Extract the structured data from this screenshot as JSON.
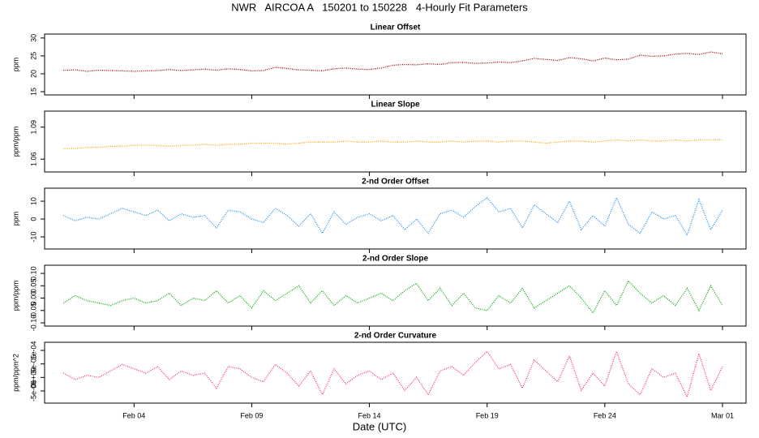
{
  "title": "NWR   AIRCOA A   150201 to 150228   4-Hourly Fit Parameters",
  "x_label": "Date (UTC)",
  "chart_data": [
    {
      "type": "line",
      "title": "Linear Offset",
      "y_label": "ppm",
      "color": "#a00000",
      "xlim": [
        0.2,
        30.0
      ],
      "ylim": [
        14.1,
        31.1
      ],
      "yticks": [
        15,
        20,
        25,
        30
      ],
      "x": [
        1,
        1.5,
        2,
        2.5,
        3,
        3.5,
        4,
        4.5,
        5,
        5.5,
        6,
        6.5,
        7,
        7.5,
        8,
        8.5,
        9,
        9.5,
        10,
        10.5,
        11,
        11.5,
        12,
        12.5,
        13,
        13.5,
        14,
        14.5,
        15,
        15.5,
        16,
        16.5,
        17,
        17.5,
        18,
        18.5,
        19,
        19.5,
        20,
        20.5,
        21,
        21.5,
        22,
        22.5,
        23,
        23.5,
        24,
        24.5,
        25,
        25.5,
        26,
        26.5,
        27,
        27.5,
        28,
        28.5,
        29
      ],
      "values": [
        21.0,
        21.1,
        20.7,
        21.0,
        20.9,
        20.8,
        20.7,
        20.8,
        20.9,
        21.2,
        20.9,
        21.1,
        21.3,
        21.0,
        21.4,
        21.2,
        20.8,
        20.9,
        21.8,
        21.5,
        21.1,
        21.0,
        20.8,
        21.4,
        21.6,
        21.3,
        21.2,
        21.6,
        22.4,
        22.6,
        22.5,
        22.8,
        22.6,
        23.1,
        23.2,
        22.9,
        23.0,
        23.3,
        23.1,
        23.6,
        24.3,
        24.0,
        23.7,
        24.5,
        24.2,
        23.6,
        24.4,
        23.9,
        24.1,
        25.2,
        24.9,
        25.0,
        25.5,
        25.7,
        25.4,
        26.1,
        25.6
      ]
    },
    {
      "type": "line",
      "title": "Linear Slope",
      "y_label": "ppm/ppm",
      "color": "#ffa500",
      "xlim": [
        0.2,
        30.0
      ],
      "ylim": [
        1.048,
        1.105
      ],
      "yticks": [
        1.06,
        1.09
      ],
      "x": [
        1,
        1.5,
        2,
        2.5,
        3,
        3.5,
        4,
        4.5,
        5,
        5.5,
        6,
        6.5,
        7,
        7.5,
        8,
        8.5,
        9,
        9.5,
        10,
        10.5,
        11,
        11.5,
        12,
        12.5,
        13,
        13.5,
        14,
        14.5,
        15,
        15.5,
        16,
        16.5,
        17,
        17.5,
        18,
        18.5,
        19,
        19.5,
        20,
        20.5,
        21,
        21.5,
        22,
        22.5,
        23,
        23.5,
        24,
        24.5,
        25,
        25.5,
        26,
        26.5,
        27,
        27.5,
        28,
        28.5,
        29
      ],
      "values": [
        1.07,
        1.07,
        1.071,
        1.071,
        1.072,
        1.072,
        1.073,
        1.073,
        1.073,
        1.072,
        1.073,
        1.073,
        1.074,
        1.073,
        1.074,
        1.074,
        1.075,
        1.075,
        1.075,
        1.074,
        1.075,
        1.076,
        1.076,
        1.076,
        1.077,
        1.076,
        1.076,
        1.077,
        1.076,
        1.076,
        1.077,
        1.076,
        1.076,
        1.077,
        1.076,
        1.077,
        1.077,
        1.076,
        1.077,
        1.077,
        1.076,
        1.075,
        1.076,
        1.077,
        1.077,
        1.076,
        1.077,
        1.078,
        1.077,
        1.078,
        1.077,
        1.077,
        1.078,
        1.077,
        1.078,
        1.078,
        1.078
      ]
    },
    {
      "type": "line",
      "title": "2-nd Order Offset",
      "y_label": "ppm",
      "color": "#1e90ff",
      "xlim": [
        0.2,
        30.0
      ],
      "ylim": [
        -16.8,
        17.3
      ],
      "yticks": [
        -10,
        0,
        10
      ],
      "x": [
        1,
        1.5,
        2,
        2.5,
        3,
        3.5,
        4,
        4.5,
        5,
        5.5,
        6,
        6.5,
        7,
        7.5,
        8,
        8.5,
        9,
        9.5,
        10,
        10.5,
        11,
        11.5,
        12,
        12.5,
        13,
        13.5,
        14,
        14.5,
        15,
        15.5,
        16,
        16.5,
        17,
        17.5,
        18,
        18.5,
        19,
        19.5,
        20,
        20.5,
        21,
        21.5,
        22,
        22.5,
        23,
        23.5,
        24,
        24.5,
        25,
        25.5,
        26,
        26.5,
        27,
        27.5,
        28,
        28.5,
        29
      ],
      "values": [
        2,
        -1,
        1,
        0,
        3,
        6,
        4,
        2,
        5,
        -1,
        3,
        1,
        2,
        -5,
        5,
        4,
        0,
        -2,
        6,
        2,
        -4,
        3,
        -8,
        4,
        -3,
        1,
        3,
        -1,
        2,
        -6,
        0,
        -8,
        3,
        5,
        1,
        7,
        12,
        4,
        6,
        -5,
        8,
        3,
        -2,
        10,
        -6,
        2,
        -4,
        12,
        -3,
        -8,
        4,
        0,
        2,
        -9,
        11,
        -6,
        5
      ]
    },
    {
      "type": "line",
      "title": "2-nd Order Slope",
      "y_label": "ppm/ppm",
      "color": "#00b000",
      "xlim": [
        0.2,
        30.0
      ],
      "ylim": [
        -0.113,
        0.133
      ],
      "yticks": [
        {
          "value": -0.1,
          "label": "-0.10"
        },
        {
          "value": -0.05,
          "label": "-0.05"
        },
        {
          "value": 0,
          "label": "0.00"
        },
        {
          "value": 0.05,
          "label": "0.05"
        },
        {
          "value": 0.1,
          "label": "0.10"
        }
      ],
      "x": [
        1,
        1.5,
        2,
        2.5,
        3,
        3.5,
        4,
        4.5,
        5,
        5.5,
        6,
        6.5,
        7,
        7.5,
        8,
        8.5,
        9,
        9.5,
        10,
        10.5,
        11,
        11.5,
        12,
        12.5,
        13,
        13.5,
        14,
        14.5,
        15,
        15.5,
        16,
        16.5,
        17,
        17.5,
        18,
        18.5,
        19,
        19.5,
        20,
        20.5,
        21,
        21.5,
        22,
        22.5,
        23,
        23.5,
        24,
        24.5,
        25,
        25.5,
        26,
        26.5,
        27,
        27.5,
        28,
        28.5,
        29
      ],
      "values": [
        -0.02,
        0.01,
        -0.01,
        -0.02,
        -0.03,
        -0.01,
        0,
        -0.02,
        -0.01,
        0.02,
        -0.03,
        0,
        -0.01,
        0.03,
        -0.02,
        0.01,
        -0.04,
        0.03,
        -0.01,
        0.02,
        0.05,
        -0.02,
        0.03,
        -0.03,
        0.01,
        -0.02,
        0,
        0.02,
        -0.01,
        0.03,
        0.06,
        -0.01,
        0.04,
        -0.03,
        0.02,
        -0.04,
        -0.05,
        0.01,
        -0.02,
        0.04,
        -0.04,
        -0.01,
        0.02,
        0.05,
        0,
        -0.06,
        0.03,
        -0.03,
        0.07,
        0.02,
        -0.02,
        0.01,
        -0.03,
        0.04,
        -0.05,
        0.05,
        -0.03
      ]
    },
    {
      "type": "line",
      "title": "2-nd Order Curvature",
      "y_label": "ppm/ppm^2",
      "color": "#ff3366",
      "xlim": [
        0.2,
        30.0
      ],
      "ylim": [
        -9.5e-05,
        0.00013
      ],
      "yticks": [
        {
          "value": -5e-05,
          "label": "-5e-05"
        },
        {
          "value": 0,
          "label": "0e+00"
        },
        {
          "value": 5e-05,
          "label": "5e-05"
        },
        {
          "value": 0.0001,
          "label": "1e-04"
        }
      ],
      "xticks": [
        {
          "value": 4,
          "label": "Feb 04"
        },
        {
          "value": 9,
          "label": "Feb 09"
        },
        {
          "value": 14,
          "label": "Feb 14"
        },
        {
          "value": 19,
          "label": "Feb 19"
        },
        {
          "value": 24,
          "label": "Feb 24"
        },
        {
          "value": 29,
          "label": "Mar 01"
        }
      ],
      "x": [
        1,
        1.5,
        2,
        2.5,
        3,
        3.5,
        4,
        4.5,
        5,
        5.5,
        6,
        6.5,
        7,
        7.5,
        8,
        8.5,
        9,
        9.5,
        10,
        10.5,
        11,
        11.5,
        12,
        12.5,
        13,
        13.5,
        14,
        14.5,
        15,
        15.5,
        16,
        16.5,
        17,
        17.5,
        18,
        18.5,
        19,
        19.5,
        20,
        20.5,
        21,
        21.5,
        22,
        22.5,
        23,
        23.5,
        24,
        24.5,
        25,
        25.5,
        26,
        26.5,
        27,
        27.5,
        28,
        28.5,
        29
      ],
      "values": [
        1.6e-05,
        -8e-06,
        8e-06,
        0,
        2.4e-05,
        4.8e-05,
        3.2e-05,
        1.6e-05,
        4e-05,
        -8e-06,
        2.4e-05,
        8e-06,
        1.6e-05,
        -4e-05,
        4e-05,
        3.2e-05,
        0,
        -1.6e-05,
        4.8e-05,
        1.6e-05,
        -3.2e-05,
        2.4e-05,
        -6.4e-05,
        3.2e-05,
        -2.4e-05,
        8e-06,
        2.4e-05,
        -8e-06,
        1.6e-05,
        -4.8e-05,
        0,
        -6.4e-05,
        2.4e-05,
        4e-05,
        8e-06,
        5.6e-05,
        9.6e-05,
        3.2e-05,
        4.8e-05,
        -4e-05,
        6.4e-05,
        2.4e-05,
        -1.6e-05,
        8e-05,
        -4.8e-05,
        1.6e-05,
        -3.2e-05,
        9.6e-05,
        -2.4e-05,
        -6.4e-05,
        3.2e-05,
        0,
        1.6e-05,
        -7.2e-05,
        8.8e-05,
        -4.8e-05,
        4e-05
      ]
    }
  ]
}
